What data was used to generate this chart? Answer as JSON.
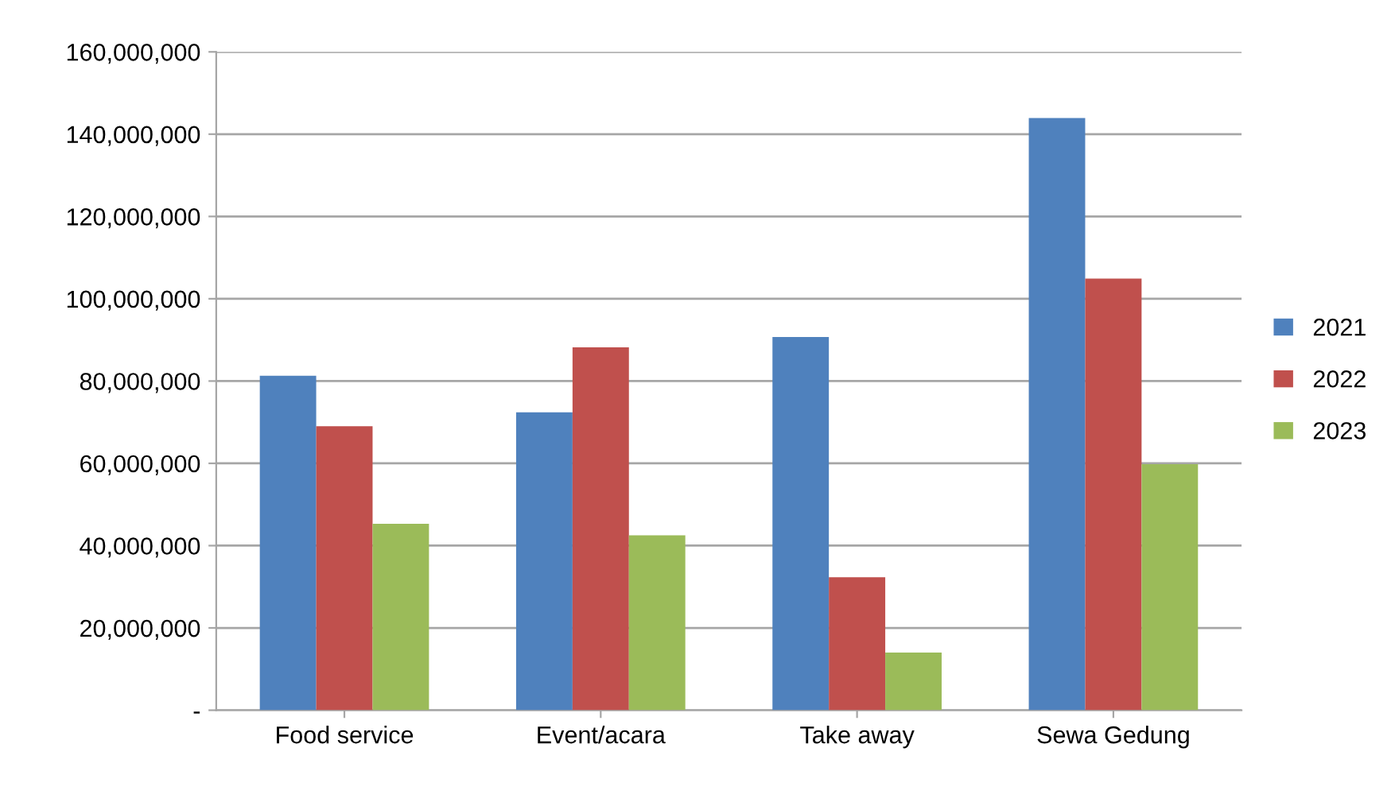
{
  "chart_data": {
    "type": "bar",
    "categories": [
      "Food service",
      "Event/acara",
      "Take away",
      "Sewa Gedung"
    ],
    "series": [
      {
        "name": "2021",
        "color": "#4f81bd",
        "values": [
          81300000,
          72400000,
          90700000,
          143900000
        ]
      },
      {
        "name": "2022",
        "color": "#c0504d",
        "values": [
          69000000,
          88200000,
          32300000,
          104900000
        ]
      },
      {
        "name": "2023",
        "color": "#9bbb59",
        "values": [
          45300000,
          42500000,
          14000000,
          59800000
        ]
      }
    ],
    "ylim": [
      0,
      160000000
    ],
    "yticks": [
      {
        "value": 0,
        "label": "-"
      },
      {
        "value": 20000000,
        "label": "20,000,000"
      },
      {
        "value": 40000000,
        "label": "40,000,000"
      },
      {
        "value": 60000000,
        "label": "60,000,000"
      },
      {
        "value": 80000000,
        "label": "80,000,000"
      },
      {
        "value": 100000000,
        "label": "100,000,000"
      },
      {
        "value": 120000000,
        "label": "120,000,000"
      },
      {
        "value": 140000000,
        "label": "140,000,000"
      },
      {
        "value": 160000000,
        "label": "160,000,000"
      }
    ],
    "grid": "y",
    "legend": "right"
  }
}
